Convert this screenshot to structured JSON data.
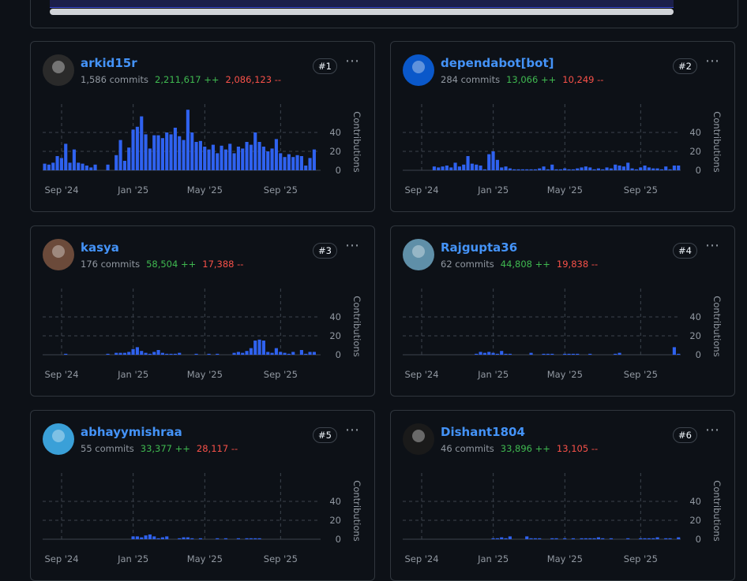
{
  "cards": [
    {
      "name": "arkid15r",
      "commits": "1,586 commits",
      "additions": "2,211,617 ++",
      "deletions": "2,086,123 --",
      "rank": "#1"
    },
    {
      "name": "dependabot[bot]",
      "commits": "284 commits",
      "additions": "13,066 ++",
      "deletions": "10,249 --",
      "rank": "#2"
    },
    {
      "name": "kasya",
      "commits": "176 commits",
      "additions": "58,504 ++",
      "deletions": "17,388 --",
      "rank": "#3"
    },
    {
      "name": "Rajgupta36",
      "commits": "62 commits",
      "additions": "44,808 ++",
      "deletions": "19,838 --",
      "rank": "#4"
    },
    {
      "name": "abhayymishraa",
      "commits": "55 commits",
      "additions": "33,377 ++",
      "deletions": "28,117 --",
      "rank": "#5"
    },
    {
      "name": "Dishant1804",
      "commits": "46 commits",
      "additions": "33,896 ++",
      "deletions": "13,105 --",
      "rank": "#6"
    }
  ],
  "chart_data": [
    {
      "type": "bar",
      "y_label": "Contributions",
      "color": "#2f62f0",
      "grid": true,
      "ylim": [
        0,
        70
      ],
      "yticks": [
        0,
        20,
        40
      ],
      "xticks": [
        {
          "value": 4,
          "label": "Sep '24"
        },
        {
          "value": 21,
          "label": "Jan '25"
        },
        {
          "value": 38,
          "label": "May '25"
        },
        {
          "value": 56,
          "label": "Sep '25"
        }
      ],
      "values": [
        7,
        6,
        8,
        15,
        13,
        28,
        8,
        22,
        8,
        7,
        5,
        3,
        6,
        0,
        0,
        6,
        0,
        16,
        32,
        10,
        24,
        43,
        46,
        57,
        38,
        23,
        37,
        37,
        34,
        40,
        38,
        45,
        36,
        32,
        64,
        40,
        30,
        31,
        25,
        22,
        27,
        18,
        26,
        22,
        28,
        18,
        25,
        23,
        30,
        27,
        40,
        30,
        25,
        20,
        23,
        33,
        18,
        14,
        17,
        14,
        16,
        15,
        5,
        13,
        22,
        0
      ]
    },
    {
      "type": "bar",
      "y_label": "Contributions",
      "color": "#2f62f0",
      "grid": true,
      "ylim": [
        0,
        70
      ],
      "yticks": [
        0,
        20,
        40
      ],
      "xticks": [
        {
          "value": 4,
          "label": "Sep '24"
        },
        {
          "value": 21,
          "label": "Jan '25"
        },
        {
          "value": 38,
          "label": "May '25"
        },
        {
          "value": 56,
          "label": "Sep '25"
        }
      ],
      "values": [
        0,
        0,
        0,
        0,
        0,
        0,
        0,
        4,
        3,
        4,
        5,
        3,
        8,
        4,
        6,
        15,
        7,
        6,
        5,
        1,
        17,
        20,
        11,
        3,
        4,
        2,
        1,
        1,
        1,
        1,
        1,
        1,
        2,
        4,
        1,
        6,
        1,
        1,
        2,
        1,
        1,
        2,
        3,
        4,
        3,
        1,
        2,
        1,
        3,
        2,
        6,
        5,
        4,
        8,
        2,
        1,
        3,
        5,
        3,
        2,
        2,
        1,
        4,
        1,
        5,
        5
      ]
    },
    {
      "type": "bar",
      "y_label": "Contributions",
      "color": "#2f62f0",
      "grid": true,
      "ylim": [
        0,
        70
      ],
      "yticks": [
        0,
        20,
        40
      ],
      "xticks": [
        {
          "value": 4,
          "label": "Sep '24"
        },
        {
          "value": 21,
          "label": "Jan '25"
        },
        {
          "value": 38,
          "label": "May '25"
        },
        {
          "value": 56,
          "label": "Sep '25"
        }
      ],
      "values": [
        0,
        0,
        0,
        0,
        0,
        1,
        0,
        0,
        0,
        0,
        0,
        0,
        0,
        0,
        0,
        1,
        0,
        2,
        2,
        2,
        3,
        6,
        8,
        4,
        2,
        1,
        3,
        5,
        2,
        1,
        1,
        1,
        2,
        0,
        0,
        0,
        1,
        0,
        0,
        1,
        0,
        1,
        0,
        0,
        0,
        2,
        3,
        2,
        4,
        7,
        15,
        16,
        15,
        3,
        2,
        7,
        3,
        2,
        1,
        3,
        0,
        5,
        1,
        3,
        3,
        0
      ]
    },
    {
      "type": "bar",
      "y_label": "Contributions",
      "color": "#2f62f0",
      "grid": true,
      "ylim": [
        0,
        70
      ],
      "yticks": [
        0,
        20,
        40
      ],
      "xticks": [
        {
          "value": 4,
          "label": "Sep '24"
        },
        {
          "value": 21,
          "label": "Jan '25"
        },
        {
          "value": 38,
          "label": "May '25"
        },
        {
          "value": 56,
          "label": "Sep '25"
        }
      ],
      "values": [
        0,
        0,
        0,
        0,
        0,
        0,
        0,
        0,
        0,
        0,
        0,
        0,
        0,
        0,
        0,
        0,
        0,
        1,
        3,
        2,
        3,
        2,
        1,
        4,
        1,
        1,
        0,
        0,
        0,
        0,
        2,
        0,
        0,
        1,
        1,
        1,
        0,
        0,
        1,
        1,
        1,
        1,
        0,
        0,
        1,
        0,
        0,
        0,
        0,
        0,
        1,
        2,
        0,
        0,
        0,
        0,
        0,
        0,
        0,
        0,
        0,
        0,
        0,
        0,
        8,
        1
      ]
    },
    {
      "type": "bar",
      "y_label": "Contributions",
      "color": "#2f62f0",
      "grid": true,
      "ylim": [
        0,
        70
      ],
      "yticks": [
        0,
        20,
        40
      ],
      "xticks": [
        {
          "value": 4,
          "label": "Sep '24"
        },
        {
          "value": 21,
          "label": "Jan '25"
        },
        {
          "value": 38,
          "label": "May '25"
        },
        {
          "value": 56,
          "label": "Sep '25"
        }
      ],
      "values": [
        0,
        0,
        0,
        0,
        0,
        0,
        0,
        0,
        0,
        0,
        0,
        0,
        0,
        0,
        0,
        0,
        0,
        0,
        0,
        0,
        0,
        3,
        3,
        2,
        4,
        5,
        3,
        1,
        2,
        3,
        0,
        0,
        1,
        2,
        2,
        1,
        0,
        1,
        0,
        0,
        0,
        1,
        0,
        1,
        0,
        0,
        1,
        0,
        1,
        1,
        1,
        1,
        0,
        0,
        0,
        0,
        0,
        0,
        0,
        0,
        0,
        0,
        0,
        0,
        0,
        0
      ]
    },
    {
      "type": "bar",
      "y_label": "Contributions",
      "color": "#2f62f0",
      "grid": true,
      "ylim": [
        0,
        70
      ],
      "yticks": [
        0,
        20,
        40
      ],
      "xticks": [
        {
          "value": 4,
          "label": "Sep '24"
        },
        {
          "value": 21,
          "label": "Jan '25"
        },
        {
          "value": 38,
          "label": "May '25"
        },
        {
          "value": 56,
          "label": "Sep '25"
        }
      ],
      "values": [
        0,
        0,
        0,
        0,
        0,
        0,
        0,
        0,
        0,
        0,
        0,
        0,
        0,
        0,
        0,
        0,
        0,
        0,
        0,
        0,
        0,
        1,
        1,
        2,
        1,
        3,
        0,
        0,
        0,
        3,
        1,
        1,
        1,
        0,
        0,
        1,
        1,
        0,
        1,
        0,
        1,
        0,
        1,
        1,
        1,
        1,
        2,
        1,
        0,
        1,
        0,
        0,
        0,
        1,
        0,
        0,
        1,
        1,
        1,
        1,
        2,
        0,
        1,
        1,
        0,
        2
      ]
    }
  ]
}
